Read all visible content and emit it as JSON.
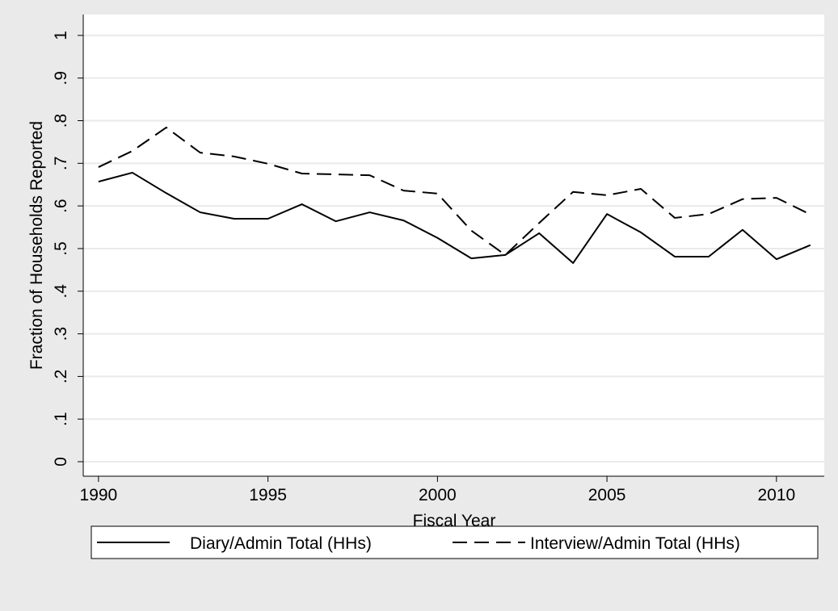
{
  "chart_data": {
    "type": "line",
    "xlabel": "Fiscal Year",
    "ylabel": "Fraction of Households Reported",
    "x": [
      1990,
      1991,
      1992,
      1993,
      1994,
      1995,
      1996,
      1997,
      1998,
      1999,
      2000,
      2001,
      2002,
      2003,
      2004,
      2005,
      2006,
      2007,
      2008,
      2009,
      2010,
      2011
    ],
    "series": [
      {
        "name": "Diary/Admin Total (HHs)",
        "color": "#000000",
        "dash": "solid",
        "values": [
          0.657,
          0.678,
          0.63,
          0.585,
          0.57,
          0.57,
          0.604,
          0.564,
          0.585,
          0.566,
          0.525,
          0.477,
          0.485,
          0.536,
          0.466,
          0.581,
          0.538,
          0.481,
          0.481,
          0.544,
          0.475,
          0.508
        ]
      },
      {
        "name": "Interview/Admin Total (HHs)",
        "color": "#000000",
        "dash": "dashed",
        "values": [
          0.691,
          0.729,
          0.784,
          0.725,
          0.716,
          0.699,
          0.676,
          0.674,
          0.672,
          0.636,
          0.629,
          0.542,
          0.485,
          0.56,
          0.633,
          0.625,
          0.64,
          0.572,
          0.581,
          0.616,
          0.619,
          0.58
        ]
      }
    ],
    "xlim": [
      1989.55,
      2011.41
    ],
    "ylim": [
      -0.034,
      1.049
    ],
    "xticks": [
      1990,
      1995,
      2000,
      2005,
      2010
    ],
    "yticks": [
      0,
      {
        "value": 0.1,
        "label": ".1"
      },
      {
        "value": 0.2,
        "label": ".2"
      },
      {
        "value": 0.3,
        "label": ".3"
      },
      {
        "value": 0.4,
        "label": ".4"
      },
      {
        "value": 0.5,
        "label": ".5"
      },
      {
        "value": 0.6,
        "label": ".6"
      },
      {
        "value": 0.7,
        "label": ".7"
      },
      {
        "value": 0.8,
        "label": ".8"
      },
      {
        "value": 0.9,
        "label": ".9"
      },
      1
    ],
    "grid": true,
    "legend": "bottom"
  }
}
